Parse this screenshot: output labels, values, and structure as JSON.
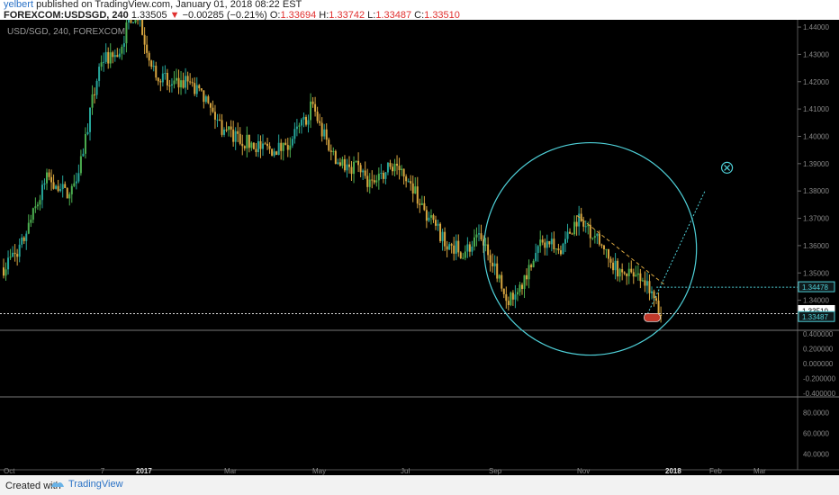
{
  "header": {
    "author": "yelbert",
    "published_text": "published on TradingView.com, January 01, 2018 08:22 EST",
    "symbol": "FOREXCOM:USDSGD, 240",
    "last": "1.33505",
    "change_arrow": "▼",
    "change": "−0.00285 (−0.21%)",
    "o_label": "O:",
    "o_val": "1.33694",
    "h_label": "H:",
    "h_val": "1.33742",
    "l_label": "L:",
    "l_val": "1.33487",
    "c_label": "C:",
    "c_val": "1.33510"
  },
  "colors": {
    "up": "#26a69a",
    "down": "#d8a640",
    "mixed_up": "#4caf50",
    "accent": "#4fd1d9",
    "neg": "#e0302f"
  },
  "chart_data": {
    "type": "candlestick",
    "title": "USD/SGD, 240, FOREXCOM",
    "x_labels": [
      "Oct",
      "7",
      "2017",
      "Mar",
      "May",
      "Jul",
      "Sep",
      "Nov",
      "2018",
      "Feb",
      "Mar"
    ],
    "x_label_months": [
      0,
      2.2,
      3,
      5,
      7,
      9,
      11,
      13,
      15,
      16,
      17
    ],
    "ylim": [
      1.329,
      1.442
    ],
    "y_ticks": [
      1.34,
      1.35,
      1.36,
      1.37,
      1.38,
      1.39,
      1.4,
      1.41,
      1.42,
      1.43,
      1.44
    ],
    "y_tick_labels": [
      "1.34000",
      "1.35000",
      "1.36000",
      "1.37000",
      "1.38000",
      "1.39000",
      "1.40000",
      "1.41000",
      "1.42000",
      "1.43000",
      "1.44000"
    ],
    "price_path": [
      [
        0,
        1.352
      ],
      [
        0.4,
        1.36
      ],
      [
        1.0,
        1.385
      ],
      [
        1.5,
        1.378
      ],
      [
        1.8,
        1.395
      ],
      [
        2.2,
        1.428
      ],
      [
        2.6,
        1.43
      ],
      [
        2.9,
        1.445
      ],
      [
        3.1,
        1.44
      ],
      [
        3.4,
        1.425
      ],
      [
        3.8,
        1.418
      ],
      [
        4.2,
        1.42
      ],
      [
        4.6,
        1.412
      ],
      [
        5.0,
        1.402
      ],
      [
        5.5,
        1.398
      ],
      [
        6.0,
        1.395
      ],
      [
        6.4,
        1.396
      ],
      [
        6.8,
        1.405
      ],
      [
        7.0,
        1.412
      ],
      [
        7.2,
        1.402
      ],
      [
        7.6,
        1.39
      ],
      [
        8.0,
        1.388
      ],
      [
        8.4,
        1.382
      ],
      [
        8.8,
        1.39
      ],
      [
        9.2,
        1.385
      ],
      [
        9.6,
        1.37
      ],
      [
        10.0,
        1.362
      ],
      [
        10.4,
        1.358
      ],
      [
        10.8,
        1.362
      ],
      [
        11.1,
        1.355
      ],
      [
        11.4,
        1.34
      ],
      [
        11.8,
        1.348
      ],
      [
        12.2,
        1.362
      ],
      [
        12.6,
        1.358
      ],
      [
        13.0,
        1.37
      ],
      [
        13.4,
        1.364
      ],
      [
        13.8,
        1.352
      ],
      [
        14.2,
        1.35
      ],
      [
        14.6,
        1.345
      ],
      [
        14.9,
        1.3351
      ]
    ],
    "price_labels": [
      {
        "value": 1.34478,
        "text": "1.34478",
        "color": "#4fd1d9"
      },
      {
        "value": 1.3351,
        "text": "1.33510",
        "color": "#ffffff"
      },
      {
        "value": 1.33487,
        "text": "1.33487",
        "color": "#4fd1d9"
      }
    ],
    "drawings": {
      "circle_center": [
        13.3,
        1.3588
      ],
      "trend_line": [
        [
          13.0,
          1.371
        ],
        [
          15.0,
          1.3455
        ]
      ],
      "projection_line": [
        [
          14.6,
          1.335
        ],
        [
          15.9,
          1.38
        ]
      ],
      "level_line": 1.34478
    },
    "osc1": {
      "ylim": [
        -0.45,
        0.45
      ],
      "y_ticks": [
        0.4,
        0.2,
        0.0,
        -0.2,
        -0.4
      ],
      "y_tick_labels": [
        "0.400000",
        "0.200000",
        "0.000000",
        "-0.200000",
        "-0.400000"
      ]
    },
    "osc2": {
      "ylim": [
        25,
        95
      ],
      "y_ticks": [
        80,
        60,
        40
      ],
      "y_tick_labels": [
        "80.0000",
        "60.0000",
        "40.0000"
      ]
    },
    "grid": false
  },
  "footer": {
    "created_with": "Created with",
    "brand": "TradingView"
  }
}
